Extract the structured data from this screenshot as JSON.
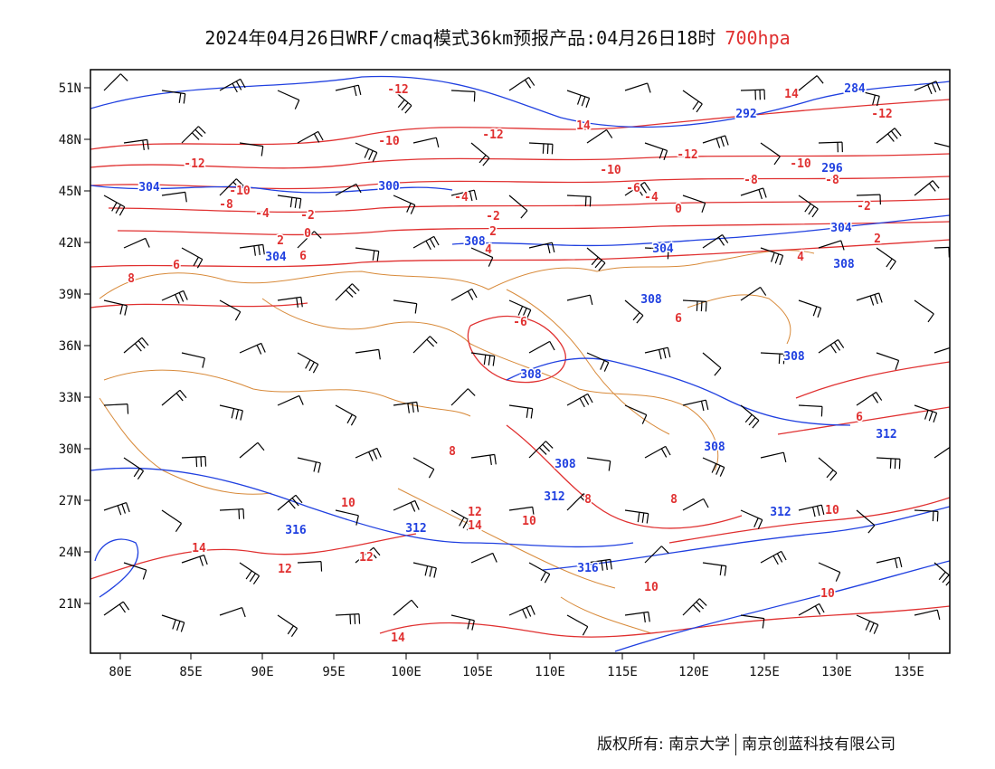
{
  "title": {
    "main": "2024年04月26日WRF/cmaq模式36km预报产品:04月26日18时",
    "level": "700hpa"
  },
  "axes": {
    "lat_labels": [
      "51N",
      "48N",
      "45N",
      "42N",
      "39N",
      "36N",
      "33N",
      "30N",
      "27N",
      "24N",
      "21N"
    ],
    "lon_labels": [
      "80E",
      "85E",
      "90E",
      "95E",
      "100E",
      "105E",
      "110E",
      "115E",
      "120E",
      "125E",
      "130E",
      "135E"
    ]
  },
  "contours": {
    "height_color": "#2040e0",
    "temp_color": "#e03030",
    "border_color": "#d88a3a",
    "height_labels": [
      "284",
      "292",
      "296",
      "300",
      "304",
      "304",
      "304",
      "304",
      "308",
      "308",
      "308",
      "308",
      "308",
      "308",
      "308",
      "312",
      "312",
      "312",
      "312",
      "316",
      "316"
    ],
    "temp_labels": [
      "-12",
      "-12",
      "-12",
      "-12",
      "-12",
      "-10",
      "-10",
      "-10",
      "-10",
      "-8",
      "-8",
      "-8",
      "-6",
      "-6",
      "-4",
      "-4",
      "-4",
      "-2",
      "-2",
      "-2",
      "0",
      "0",
      "2",
      "2",
      "2",
      "4",
      "4",
      "6",
      "6",
      "6",
      "6",
      "8",
      "8",
      "8",
      "8",
      "10",
      "10",
      "10",
      "10",
      "10",
      "12",
      "12",
      "12",
      "14",
      "14",
      "14",
      "14",
      "14"
    ]
  },
  "footer": {
    "left": "版权所有: 南京大学",
    "right": "南京创蓝科技有限公司"
  }
}
